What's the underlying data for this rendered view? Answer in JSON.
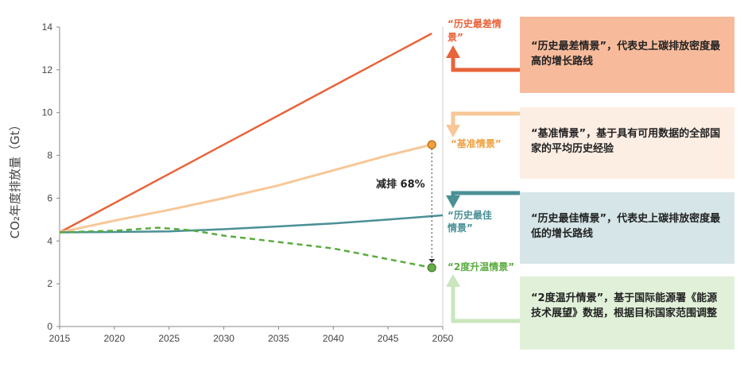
{
  "chart_data": {
    "type": "line",
    "ylabel": "CO₂年度排放量（Gt）",
    "xlim": [
      2015,
      2050
    ],
    "ylim": [
      0,
      14
    ],
    "x_ticks": [
      "2015",
      "2020",
      "2025",
      "2030",
      "2035",
      "2040",
      "2045",
      "2050"
    ],
    "y_ticks": [
      "0",
      "2",
      "4",
      "6",
      "8",
      "10",
      "12",
      "14"
    ],
    "grid": false,
    "series": [
      {
        "key": "worst",
        "name": "“历史最差情景”",
        "color": "#e8643a",
        "style": "solid",
        "x": [
          2015,
          2049
        ],
        "y": [
          4.4,
          13.7
        ]
      },
      {
        "key": "base",
        "name": "“基准情景”",
        "color": "#f7c797",
        "style": "solid",
        "x": [
          2015,
          2020,
          2025,
          2030,
          2035,
          2040,
          2045,
          2049
        ],
        "y": [
          4.4,
          4.95,
          5.45,
          6.0,
          6.6,
          7.3,
          8.0,
          8.5
        ]
      },
      {
        "key": "best",
        "name": "“历史最佳情景”",
        "color": "#4a9095",
        "style": "solid",
        "x": [
          2015,
          2020,
          2025,
          2030,
          2035,
          2040,
          2045,
          2050
        ],
        "y": [
          4.4,
          4.42,
          4.45,
          4.55,
          4.68,
          4.82,
          5.0,
          5.2
        ]
      },
      {
        "key": "deg2",
        "name": "“2度升温情景”",
        "color": "#5aab3f",
        "style": "dashed",
        "x": [
          2015,
          2020,
          2024,
          2027,
          2030,
          2035,
          2040,
          2045,
          2049
        ],
        "y": [
          4.4,
          4.48,
          4.62,
          4.5,
          4.25,
          3.95,
          3.65,
          3.15,
          2.75
        ]
      }
    ],
    "markers": [
      {
        "x": 2049,
        "y": 8.5,
        "color": "#f0a040",
        "stroke": "#b66d10"
      },
      {
        "x": 2049,
        "y": 2.75,
        "color": "#6aab4a",
        "stroke": "#3b7b22"
      }
    ],
    "annotation": {
      "text": "减排 68%",
      "x": 2049,
      "y_from": 8.5,
      "y_to": 2.75
    }
  },
  "labels": {
    "worst": "“历史最差情景”",
    "base": "“基准情景”",
    "best": "“历史最佳情景”",
    "deg2": "“2度升温情景”"
  },
  "boxes": [
    {
      "key": "worst",
      "text": "“历史最差情景”，代表史上碳排放密度最高的增长路线",
      "bg": "#f7bb9c"
    },
    {
      "key": "base",
      "text": "“基准情景”，基于具有可用数据的全部国家的平均历史经验",
      "bg": "#fdeee4"
    },
    {
      "key": "best",
      "text": "“历史最佳情景”，代表史上碳排放密度最低的增长路线",
      "bg": "#d5e5e8"
    },
    {
      "key": "deg2",
      "text": "“2度温升情景”，基于国际能源署《能源技术展望》数据，根据目标国家范围调整",
      "bg": "#e1f1d9"
    }
  ]
}
